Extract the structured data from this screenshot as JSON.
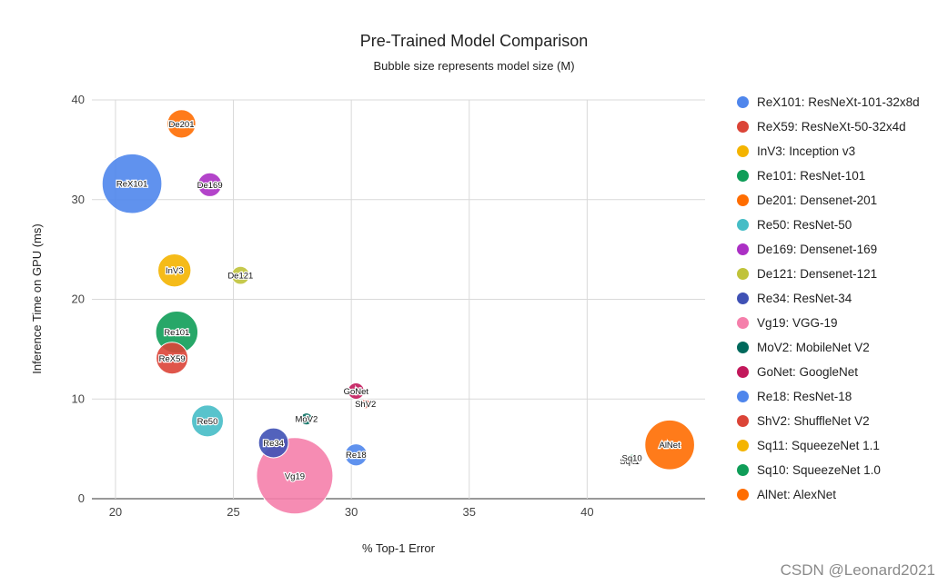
{
  "chart_data": {
    "type": "bubble",
    "title": "Pre-Trained Model Comparison",
    "subtitle": "Bubble size represents model size (M)",
    "xlabel": "% Top-1 Error",
    "ylabel": "Inference Time on GPU (ms)",
    "xlim": [
      19,
      45
    ],
    "ylim": [
      0,
      40
    ],
    "xticks": [
      20,
      25,
      30,
      35,
      40
    ],
    "yticks": [
      0,
      10,
      20,
      30,
      40
    ],
    "grid": true,
    "legend_position": "right",
    "series": [
      {
        "label": "ReX101",
        "name": "ReX101: ResNeXt-101-32x8d",
        "x": 20.7,
        "y": 31.6,
        "size": 88,
        "color": "#4f86ec"
      },
      {
        "label": "ReX59",
        "name": "ReX59: ResNeXt-50-32x4d",
        "x": 22.4,
        "y": 14.1,
        "size": 25,
        "color": "#db4437"
      },
      {
        "label": "InV3",
        "name": "InV3: Inception v3",
        "x": 22.5,
        "y": 22.9,
        "size": 27,
        "color": "#f4b400"
      },
      {
        "label": "Re101",
        "name": "Re101: ResNet-101",
        "x": 22.6,
        "y": 16.7,
        "size": 44,
        "color": "#0f9d58"
      },
      {
        "label": "De201",
        "name": "De201: Densenet-201",
        "x": 22.8,
        "y": 37.6,
        "size": 20,
        "color": "#ff6d01"
      },
      {
        "label": "Re50",
        "name": "Re50: ResNet-50",
        "x": 23.9,
        "y": 7.8,
        "size": 25,
        "color": "#46bdc6"
      },
      {
        "label": "De169",
        "name": "De169: Densenet-169",
        "x": 24.0,
        "y": 31.5,
        "size": 14,
        "color": "#ab30c4"
      },
      {
        "label": "De121",
        "name": "De121: Densenet-121",
        "x": 25.3,
        "y": 22.4,
        "size": 8,
        "color": "#c0c33a"
      },
      {
        "label": "Re34",
        "name": "Re34: ResNet-34",
        "x": 26.7,
        "y": 5.6,
        "size": 22,
        "color": "#3f51b5"
      },
      {
        "label": "Vg19",
        "name": "Vg19: VGG-19",
        "x": 27.6,
        "y": 2.3,
        "size": 144,
        "color": "#f57fab"
      },
      {
        "label": "MoV2",
        "name": "MoV2: MobileNet V2",
        "x": 28.1,
        "y": 8.0,
        "size": 3.5,
        "color": "#00695c"
      },
      {
        "label": "GoNet",
        "name": "GoNet: GoogleNet",
        "x": 30.2,
        "y": 10.8,
        "size": 6.6,
        "color": "#c2185b"
      },
      {
        "label": "Re18",
        "name": "Re18: ResNet-18",
        "x": 30.2,
        "y": 4.4,
        "size": 12,
        "color": "#4f86ec"
      },
      {
        "label": "ShV2",
        "name": "ShV2: ShuffleNet V2",
        "x": 30.6,
        "y": 9.5,
        "size": 2.3,
        "color": "#db4437"
      },
      {
        "label": "Sq11",
        "name": "Sq11: SqueezeNet 1.1",
        "x": 41.8,
        "y": 3.8,
        "size": 1.2,
        "color": "#f4b400"
      },
      {
        "label": "Sq10",
        "name": "Sq10: SqueezeNet 1.0",
        "x": 41.9,
        "y": 4.1,
        "size": 1.2,
        "color": "#0f9d58"
      },
      {
        "label": "AlNet",
        "name": "AlNet: AlexNet",
        "x": 43.5,
        "y": 5.4,
        "size": 61,
        "color": "#ff6d01"
      }
    ]
  },
  "watermark": "CSDN @Leonard2021"
}
